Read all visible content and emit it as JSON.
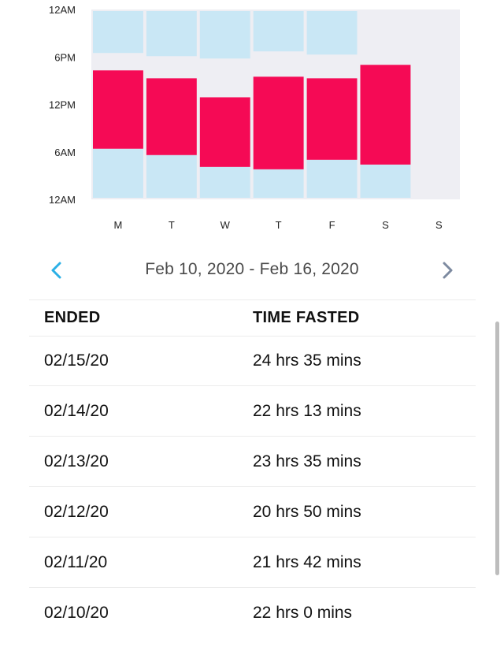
{
  "chart_data": {
    "type": "bar",
    "title": "",
    "y_ticks": [
      "12AM",
      "6PM",
      "12PM",
      "6AM",
      "12AM"
    ],
    "y_tick_hours": [
      24,
      18,
      12,
      6,
      0
    ],
    "ylim": [
      0,
      24
    ],
    "categories": [
      "M",
      "T",
      "W",
      "T",
      "F",
      "S",
      "S"
    ],
    "eating_window": [
      {
        "day": "M",
        "start_hour": 18.5,
        "end_hour": 24
      },
      {
        "day": "T",
        "start_hour": 18.1,
        "end_hour": 24
      },
      {
        "day": "W",
        "start_hour": 17.8,
        "end_hour": 24
      },
      {
        "day": "T",
        "start_hour": 18.7,
        "end_hour": 24
      },
      {
        "day": "F",
        "start_hour": 18.3,
        "end_hour": 24
      },
      {
        "day": "S",
        "start_hour": 0,
        "end_hour": 0
      },
      {
        "day": "S",
        "start_hour": 0,
        "end_hour": 0
      }
    ],
    "fasting_bars": [
      {
        "day": "M",
        "start_hour": 6.4,
        "end_hour": 16.3
      },
      {
        "day": "T",
        "start_hour": 5.6,
        "end_hour": 15.3
      },
      {
        "day": "W",
        "start_hour": 4.1,
        "end_hour": 12.9
      },
      {
        "day": "T",
        "start_hour": 3.8,
        "end_hour": 15.5
      },
      {
        "day": "F",
        "start_hour": 5.0,
        "end_hour": 15.3
      },
      {
        "day": "S",
        "start_hour": 4.4,
        "end_hour": 17.0
      },
      {
        "day": "S",
        "start_hour": 0,
        "end_hour": 0
      }
    ],
    "colors": {
      "fasting": "#f50a55",
      "window": "#c9e7f5",
      "plot_background": "#eeeef3",
      "tick_text": "#222222"
    }
  },
  "week_nav": {
    "range_label": "Feb 10, 2020 - Feb 16, 2020",
    "prev_color": "#2bb0e6",
    "next_color": "#7d8aa0"
  },
  "table": {
    "headers": {
      "ended": "ENDED",
      "time_fasted": "TIME FASTED"
    },
    "rows": [
      {
        "ended": "02/15/20",
        "time_fasted": "24 hrs 35 mins"
      },
      {
        "ended": "02/14/20",
        "time_fasted": "22 hrs 13 mins"
      },
      {
        "ended": "02/13/20",
        "time_fasted": "23 hrs 35 mins"
      },
      {
        "ended": "02/12/20",
        "time_fasted": "20 hrs 50 mins"
      },
      {
        "ended": "02/11/20",
        "time_fasted": "21 hrs 42 mins"
      },
      {
        "ended": "02/10/20",
        "time_fasted": "22 hrs 0 mins"
      }
    ]
  }
}
